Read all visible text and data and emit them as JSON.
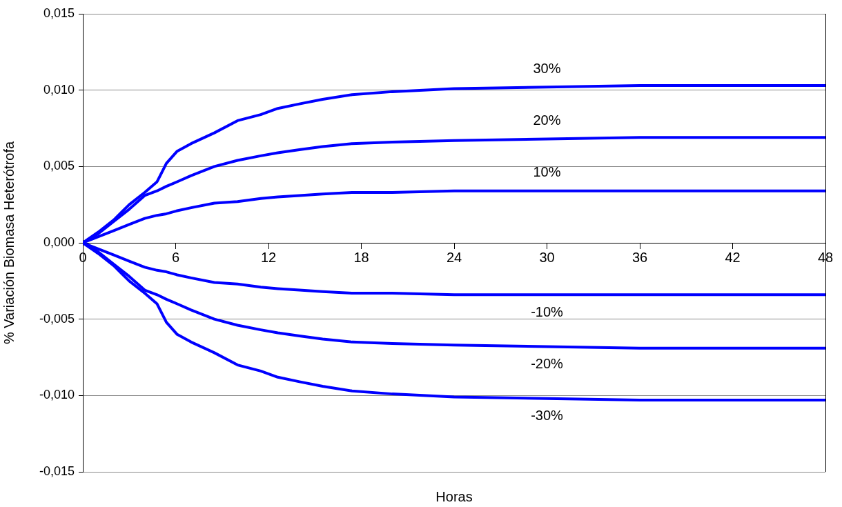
{
  "chart_data": {
    "type": "line",
    "xlabel": "Horas",
    "ylabel": "% Variación Biomasa Heterótrofa",
    "x": [
      0,
      1,
      2,
      2.5,
      3,
      4,
      4.8,
      5.4,
      6.1,
      7,
      8.5,
      10,
      11.5,
      12.6,
      14,
      15.5,
      17.4,
      20,
      24,
      30,
      36,
      42,
      48
    ],
    "series": [
      {
        "name": "30%",
        "color": "#0000ff",
        "values": [
          0,
          0.0007,
          0.0015,
          0.002,
          0.0025,
          0.0033,
          0.004,
          0.0052,
          0.006,
          0.0065,
          0.0072,
          0.008,
          0.0084,
          0.0088,
          0.0091,
          0.0094,
          0.0097,
          0.0099,
          0.0101,
          0.0102,
          0.0103,
          0.0103,
          0.0103
        ]
      },
      {
        "name": "20%",
        "color": "#0000ff",
        "values": [
          0,
          0.0006,
          0.0014,
          0.0018,
          0.0022,
          0.0031,
          0.0034,
          0.0037,
          0.004,
          0.0044,
          0.005,
          0.0054,
          0.0057,
          0.0059,
          0.0061,
          0.0063,
          0.0065,
          0.0066,
          0.0067,
          0.0068,
          0.0069,
          0.0069,
          0.0069
        ]
      },
      {
        "name": "10%",
        "color": "#0000ff",
        "values": [
          0,
          0.0004,
          0.0008,
          0.001,
          0.0012,
          0.0016,
          0.0018,
          0.0019,
          0.0021,
          0.0023,
          0.0026,
          0.0027,
          0.0029,
          0.003,
          0.0031,
          0.0032,
          0.0033,
          0.0033,
          0.0034,
          0.0034,
          0.0034,
          0.0034,
          0.0034
        ]
      },
      {
        "name": "-10%",
        "color": "#0000ff",
        "values": [
          0,
          -0.0004,
          -0.0008,
          -0.001,
          -0.0012,
          -0.0016,
          -0.0018,
          -0.0019,
          -0.0021,
          -0.0023,
          -0.0026,
          -0.0027,
          -0.0029,
          -0.003,
          -0.0031,
          -0.0032,
          -0.0033,
          -0.0033,
          -0.0034,
          -0.0034,
          -0.0034,
          -0.0034,
          -0.0034
        ]
      },
      {
        "name": "-20%",
        "color": "#0000ff",
        "values": [
          0,
          -0.0006,
          -0.0014,
          -0.0018,
          -0.0022,
          -0.0031,
          -0.0034,
          -0.0037,
          -0.004,
          -0.0044,
          -0.005,
          -0.0054,
          -0.0057,
          -0.0059,
          -0.0061,
          -0.0063,
          -0.0065,
          -0.0066,
          -0.0067,
          -0.0068,
          -0.0069,
          -0.0069,
          -0.0069
        ]
      },
      {
        "name": "-30%",
        "color": "#0000ff",
        "values": [
          0,
          -0.0007,
          -0.0015,
          -0.002,
          -0.0025,
          -0.0033,
          -0.004,
          -0.0052,
          -0.006,
          -0.0065,
          -0.0072,
          -0.008,
          -0.0084,
          -0.0088,
          -0.0091,
          -0.0094,
          -0.0097,
          -0.0099,
          -0.0101,
          -0.0102,
          -0.0103,
          -0.0103,
          -0.0103
        ]
      }
    ],
    "xlim": [
      0,
      48
    ],
    "xticks": [
      0,
      6,
      12,
      18,
      24,
      30,
      36,
      42,
      48
    ],
    "ylim": [
      -0.015,
      0.015
    ],
    "yticks": [
      {
        "value": -0.015,
        "label": "-0,015"
      },
      {
        "value": -0.01,
        "label": "-0,010"
      },
      {
        "value": -0.005,
        "label": "-0,005"
      },
      {
        "value": 0,
        "label": "0,000"
      },
      {
        "value": 0.005,
        "label": "0,005"
      },
      {
        "value": 0.01,
        "label": "0,010"
      },
      {
        "value": 0.015,
        "label": "0,015"
      }
    ],
    "grid": "y",
    "legend": false,
    "marker": "none",
    "line_style": "solid"
  }
}
